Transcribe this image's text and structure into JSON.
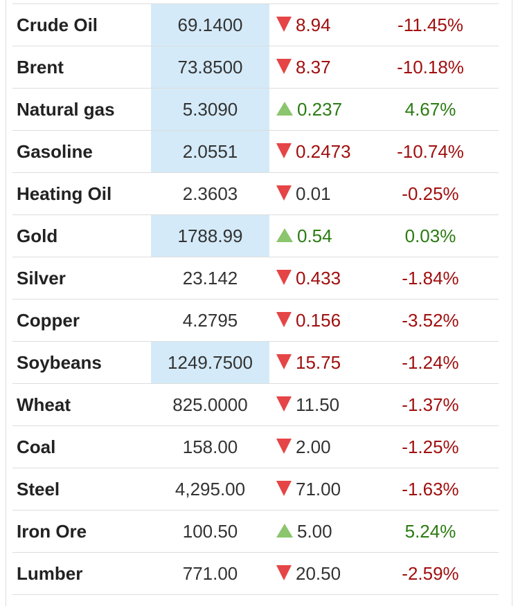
{
  "colors": {
    "highlight_bg": "#d4eaf8",
    "down_arrow": "#e54546",
    "up_arrow": "#8bc56d",
    "down_text": "#a00f0f",
    "up_text": "#2b7b12"
  },
  "rows": [
    {
      "name": "Crude Oil",
      "price": "69.1400",
      "highlight": true,
      "direction": "down",
      "direction_icon": "down-triangle-icon",
      "change": "8.94",
      "change_style": "down",
      "percent": "-11.45%",
      "percent_style": "down"
    },
    {
      "name": "Brent",
      "price": "73.8500",
      "highlight": true,
      "direction": "down",
      "direction_icon": "down-triangle-icon",
      "change": "8.37",
      "change_style": "down",
      "percent": "-10.18%",
      "percent_style": "down"
    },
    {
      "name": "Natural gas",
      "price": "5.3090",
      "highlight": true,
      "direction": "up",
      "direction_icon": "up-triangle-icon",
      "change": "0.237",
      "change_style": "up",
      "percent": "4.67%",
      "percent_style": "up"
    },
    {
      "name": "Gasoline",
      "price": "2.0551",
      "highlight": true,
      "direction": "down",
      "direction_icon": "down-triangle-icon",
      "change": "0.2473",
      "change_style": "down",
      "percent": "-10.74%",
      "percent_style": "down"
    },
    {
      "name": "Heating Oil",
      "price": "2.3603",
      "highlight": false,
      "direction": "down",
      "direction_icon": "down-triangle-icon",
      "change": "0.01",
      "change_style": "neutral",
      "percent": "-0.25%",
      "percent_style": "down"
    },
    {
      "name": "Gold",
      "price": "1788.99",
      "highlight": true,
      "direction": "up",
      "direction_icon": "up-triangle-icon",
      "change": "0.54",
      "change_style": "up",
      "percent": "0.03%",
      "percent_style": "up"
    },
    {
      "name": "Silver",
      "price": "23.142",
      "highlight": false,
      "direction": "down",
      "direction_icon": "down-triangle-icon",
      "change": "0.433",
      "change_style": "down",
      "percent": "-1.84%",
      "percent_style": "down"
    },
    {
      "name": "Copper",
      "price": "4.2795",
      "highlight": false,
      "direction": "down",
      "direction_icon": "down-triangle-icon",
      "change": "0.156",
      "change_style": "down",
      "percent": "-3.52%",
      "percent_style": "down"
    },
    {
      "name": "Soybeans",
      "price": "1249.7500",
      "highlight": true,
      "direction": "down",
      "direction_icon": "down-triangle-icon",
      "change": "15.75",
      "change_style": "down",
      "percent": "-1.24%",
      "percent_style": "down"
    },
    {
      "name": "Wheat",
      "price": "825.0000",
      "highlight": false,
      "direction": "down",
      "direction_icon": "down-triangle-icon",
      "change": "11.50",
      "change_style": "neutral",
      "percent": "-1.37%",
      "percent_style": "down"
    },
    {
      "name": "Coal",
      "price": "158.00",
      "highlight": false,
      "direction": "down",
      "direction_icon": "down-triangle-icon",
      "change": "2.00",
      "change_style": "neutral",
      "percent": "-1.25%",
      "percent_style": "down"
    },
    {
      "name": "Steel",
      "price": "4,295.00",
      "highlight": false,
      "direction": "down",
      "direction_icon": "down-triangle-icon",
      "change": "71.00",
      "change_style": "neutral",
      "percent": "-1.63%",
      "percent_style": "down"
    },
    {
      "name": "Iron Ore",
      "price": "100.50",
      "highlight": false,
      "direction": "up",
      "direction_icon": "up-triangle-icon",
      "change": "5.00",
      "change_style": "neutral",
      "percent": "5.24%",
      "percent_style": "up"
    },
    {
      "name": "Lumber",
      "price": "771.00",
      "highlight": false,
      "direction": "down",
      "direction_icon": "down-triangle-icon",
      "change": "20.50",
      "change_style": "neutral",
      "percent": "-2.59%",
      "percent_style": "down"
    }
  ]
}
